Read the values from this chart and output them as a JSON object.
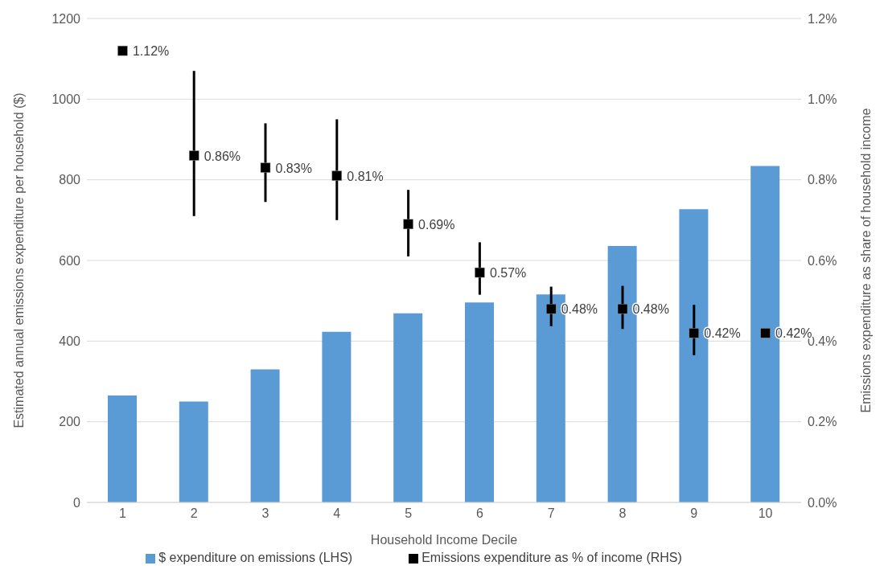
{
  "chart_data": {
    "type": "bar",
    "categories": [
      "1",
      "2",
      "3",
      "4",
      "5",
      "6",
      "7",
      "8",
      "9",
      "10"
    ],
    "xlabel": "Household Income Decile",
    "ylabel": "Estimated annual emissions expenditure per household ($)",
    "y2label": "Emissions expenditure as share of household income",
    "ylim": [
      0,
      1200
    ],
    "yticks": [
      0,
      200,
      400,
      600,
      800,
      1000,
      1200
    ],
    "y2lim": [
      0,
      1.2
    ],
    "y2ticks": [
      {
        "value": 0,
        "label": "0.0%"
      },
      {
        "value": 0.2,
        "label": "0.2%"
      },
      {
        "value": 0.4,
        "label": "0.4%"
      },
      {
        "value": 0.6,
        "label": "0.6%"
      },
      {
        "value": 0.8,
        "label": "0.8%"
      },
      {
        "value": 1.0,
        "label": "1.0%"
      },
      {
        "value": 1.2,
        "label": "1.2%"
      }
    ],
    "grid": "y",
    "legend": "bottom",
    "series": [
      {
        "name": "$ expenditure on emissions (LHS)",
        "color": "#5b9bd5",
        "values": [
          265,
          250,
          330,
          423,
          469,
          496,
          516,
          636,
          727,
          834
        ]
      },
      {
        "type": "scatter",
        "axis": "y2",
        "marker": "square",
        "name": "Emissions expenditure as % of income (RHS)",
        "color": "#000000",
        "values": [
          1.12,
          0.86,
          0.83,
          0.81,
          0.69,
          0.57,
          0.48,
          0.48,
          0.42,
          0.42
        ],
        "errors": [
          null,
          [
            0.71,
            1.07
          ],
          [
            0.745,
            0.94
          ],
          [
            0.7,
            0.95
          ],
          [
            0.61,
            0.775
          ],
          [
            0.515,
            0.645
          ],
          [
            0.437,
            0.535
          ],
          [
            0.43,
            0.537
          ],
          [
            0.365,
            0.49
          ],
          null
        ],
        "value_labels": [
          "1.12%",
          "0.86%",
          "0.83%",
          "0.81%",
          "0.69%",
          "0.57%",
          "0.48%",
          "0.48%",
          "0.42%",
          "0.42%"
        ]
      }
    ]
  }
}
